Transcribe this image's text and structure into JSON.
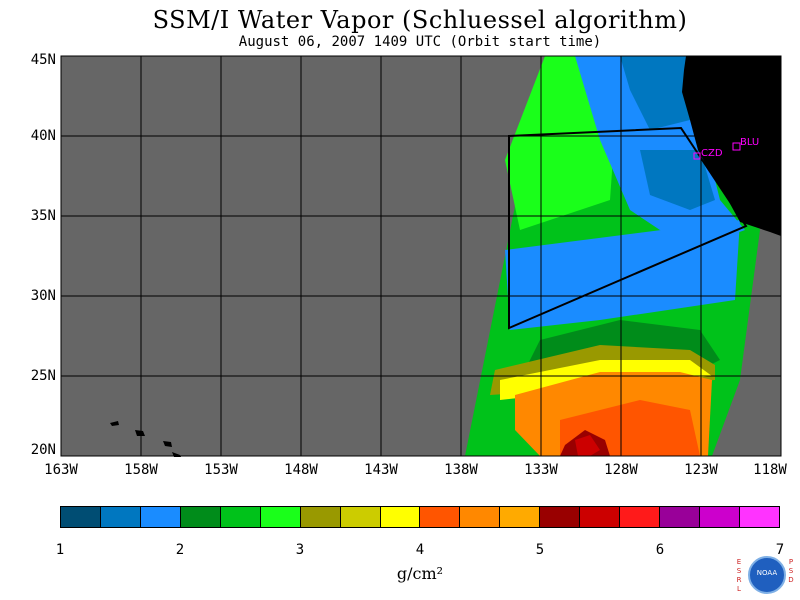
{
  "title": "SSM/I Water Vapor (Schluessel algorithm)",
  "subtitle": "August 06, 2007  1409 UTC  (Orbit start time)",
  "lat_labels": [
    "45N",
    "40N",
    "35N",
    "30N",
    "25N",
    "20N"
  ],
  "lon_labels": [
    "163W",
    "158W",
    "153W",
    "148W",
    "143W",
    "138W",
    "133W",
    "128W",
    "123W",
    "118W"
  ],
  "stations": [
    {
      "code": "CZD"
    },
    {
      "code": "BLU"
    }
  ],
  "colorbar": {
    "colors": [
      "#004d73",
      "#0077c0",
      "#1a8cff",
      "#008c1a",
      "#00c21a",
      "#1aff1a",
      "#999900",
      "#cccc00",
      "#ffff00",
      "#ff5500",
      "#ff8800",
      "#ffaa00",
      "#990000",
      "#cc0000",
      "#ff1a1a",
      "#990099",
      "#cc00cc",
      "#ff33ff"
    ],
    "ticks": [
      "1",
      "2",
      "3",
      "4",
      "5",
      "6",
      "7"
    ],
    "unit": "g/cm²"
  },
  "map_colors": {
    "land": "#000000",
    "no_data": "#666666",
    "grid": "#000000"
  },
  "logo": {
    "left_letters": [
      "E",
      "S",
      "R",
      "L"
    ],
    "right_letters": [
      "P",
      "S",
      "D"
    ],
    "text": "NOAA"
  }
}
